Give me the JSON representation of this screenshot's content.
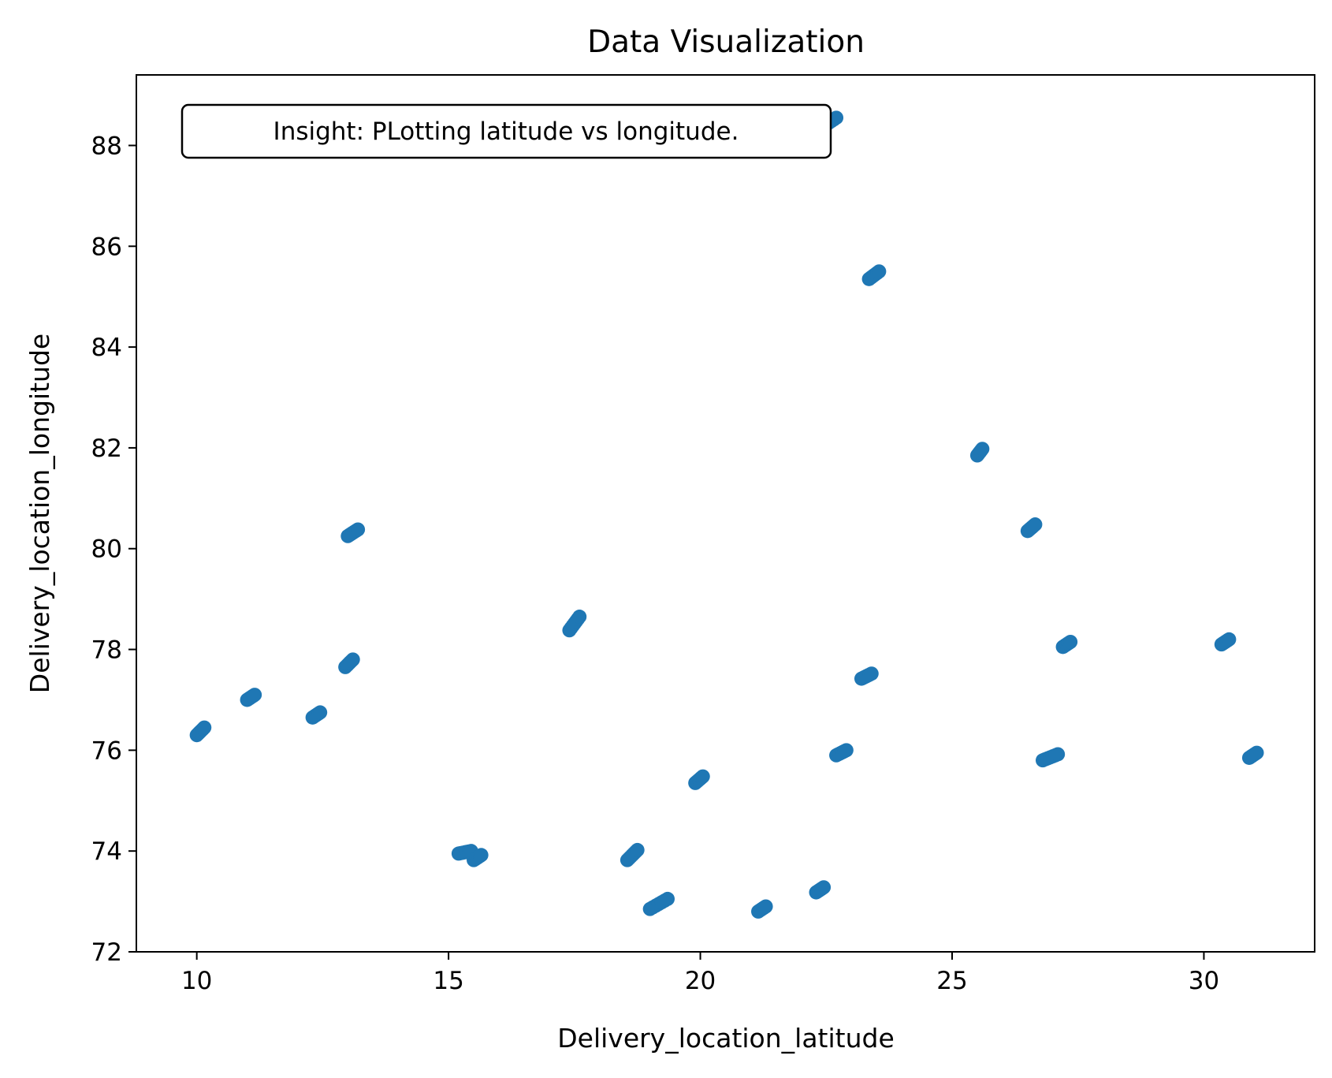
{
  "chart_data": {
    "type": "scatter",
    "title": "Data Visualization",
    "xlabel": "Delivery_location_latitude",
    "ylabel": "Delivery_location_longitude",
    "xlim": [
      8.8,
      32.2
    ],
    "ylim": [
      72.0,
      89.4
    ],
    "xticks": [
      10,
      15,
      20,
      25,
      30
    ],
    "yticks": [
      72,
      74,
      76,
      78,
      80,
      82,
      84,
      86,
      88
    ],
    "grid": false,
    "legend": "none",
    "marker_color": "#1f77b4",
    "annotation": "Insight: PLotting latitude vs longitude.",
    "clusters": [
      {
        "x": [
          10.0,
          10.15
        ],
        "y": [
          76.3,
          76.45
        ]
      },
      {
        "x": [
          11.0,
          11.15
        ],
        "y": [
          77.0,
          77.1
        ]
      },
      {
        "x": [
          12.3,
          12.45
        ],
        "y": [
          76.65,
          76.75
        ]
      },
      {
        "x": [
          12.95,
          13.1
        ],
        "y": [
          77.65,
          77.8
        ]
      },
      {
        "x": [
          13.0,
          13.2
        ],
        "y": [
          80.25,
          80.38
        ]
      },
      {
        "x": [
          15.2,
          15.45
        ],
        "y": [
          73.95,
          74.0
        ]
      },
      {
        "x": [
          15.5,
          15.65
        ],
        "y": [
          73.82,
          73.92
        ]
      },
      {
        "x": [
          17.4,
          17.6
        ],
        "y": [
          78.38,
          78.65
        ]
      },
      {
        "x": [
          18.55,
          18.75
        ],
        "y": [
          73.82,
          74.02
        ]
      },
      {
        "x": [
          19.0,
          19.35
        ],
        "y": [
          72.85,
          73.05
        ]
      },
      {
        "x": [
          19.9,
          20.05
        ],
        "y": [
          75.35,
          75.48
        ]
      },
      {
        "x": [
          21.15,
          21.3
        ],
        "y": [
          72.8,
          72.9
        ]
      },
      {
        "x": [
          22.3,
          22.45
        ],
        "y": [
          73.18,
          73.28
        ]
      },
      {
        "x": [
          22.4,
          22.7
        ],
        "y": [
          88.35,
          88.55
        ]
      },
      {
        "x": [
          22.7,
          22.9
        ],
        "y": [
          75.9,
          76.0
        ]
      },
      {
        "x": [
          23.2,
          23.4
        ],
        "y": [
          77.42,
          77.52
        ]
      },
      {
        "x": [
          23.35,
          23.55
        ],
        "y": [
          85.35,
          85.5
        ]
      },
      {
        "x": [
          25.5,
          25.6
        ],
        "y": [
          81.85,
          81.98
        ]
      },
      {
        "x": [
          26.5,
          26.65
        ],
        "y": [
          80.35,
          80.48
        ]
      },
      {
        "x": [
          26.8,
          27.1
        ],
        "y": [
          75.8,
          75.92
        ]
      },
      {
        "x": [
          27.2,
          27.35
        ],
        "y": [
          78.05,
          78.15
        ]
      },
      {
        "x": [
          30.35,
          30.5
        ],
        "y": [
          78.1,
          78.2
        ]
      },
      {
        "x": [
          30.9,
          31.05
        ],
        "y": [
          75.85,
          75.95
        ]
      }
    ]
  }
}
